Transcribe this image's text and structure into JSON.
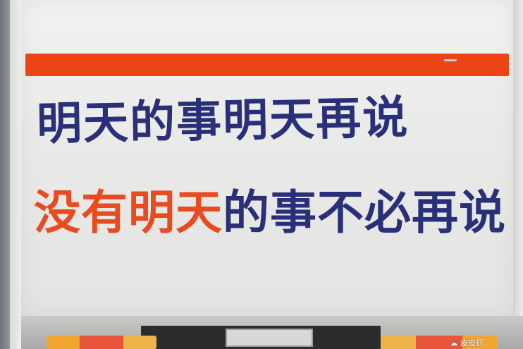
{
  "sign": {
    "line1": "明天的事明天再说",
    "line2_orange": "没有明天",
    "line2_blue": "的事不必再说"
  },
  "colors": {
    "stripe": "#ed4416",
    "ink_blue": "#2a2f7a",
    "ink_orange": "#e94a1f",
    "panel": "#f0f1ee"
  },
  "watermark": {
    "text": "皮皮虾"
  }
}
